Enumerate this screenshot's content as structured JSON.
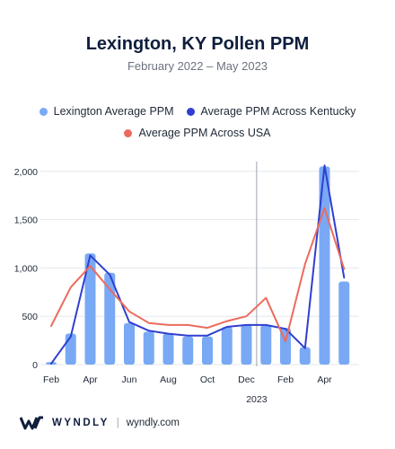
{
  "chart_data": {
    "type": "bar",
    "title": "Lexington, KY Pollen PPM",
    "subtitle": "February 2022 – May 2023",
    "categories": [
      "Feb 2022",
      "Mar 2022",
      "Apr 2022",
      "May 2022",
      "Jun 2022",
      "Jul 2022",
      "Aug 2022",
      "Sep 2022",
      "Oct 2022",
      "Nov 2022",
      "Dec 2022",
      "Jan 2023",
      "Feb 2023",
      "Mar 2023",
      "Apr 2023",
      "May 2023"
    ],
    "x_tick_labels": [
      "Feb",
      "Apr",
      "Jun",
      "Aug",
      "Oct",
      "Dec",
      "Feb",
      "Apr"
    ],
    "x_tick_index": [
      0,
      2,
      4,
      6,
      8,
      10,
      12,
      14
    ],
    "year_label": "2023",
    "year_divider_after_index": 10,
    "y_tick_labels": [
      "0",
      "500",
      "1,000",
      "1,500",
      "2,000"
    ],
    "ylim": [
      0,
      2100
    ],
    "grid": true,
    "series": [
      {
        "name": "Lexington Average PPM",
        "type": "bar",
        "color": "#79a9f5",
        "values": [
          25,
          320,
          1150,
          950,
          430,
          340,
          320,
          290,
          290,
          390,
          410,
          410,
          380,
          180,
          2050,
          860
        ]
      },
      {
        "name": "Average PPM Across Kentucky",
        "type": "line",
        "color": "#2f3fd0",
        "values": [
          10,
          290,
          1130,
          930,
          440,
          350,
          320,
          300,
          300,
          390,
          410,
          410,
          370,
          170,
          2060,
          900
        ]
      },
      {
        "name": "Average PPM Across USA",
        "type": "line",
        "color": "#ec6b5e",
        "values": [
          400,
          800,
          1020,
          780,
          550,
          430,
          410,
          410,
          380,
          450,
          500,
          690,
          240,
          1040,
          1620,
          990
        ]
      }
    ],
    "legend_position": "top"
  },
  "footer": {
    "brand": "WYNDLY",
    "separator": "|",
    "site": "wyndly.com"
  }
}
